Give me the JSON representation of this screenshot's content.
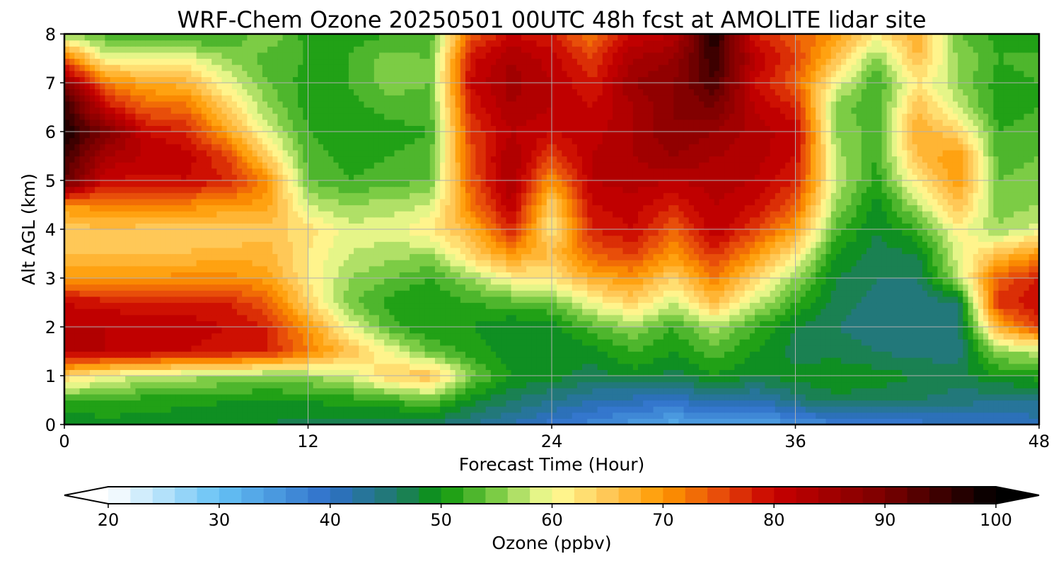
{
  "chart_data": {
    "type": "heatmap",
    "title": "WRF-Chem Ozone  20250501 00UTC 48h fcst at AMOLITE lidar site",
    "xlabel": "Forecast Time (Hour)",
    "ylabel": "Alt AGL (km)",
    "xlim": [
      0,
      48
    ],
    "ylim": [
      0,
      8
    ],
    "xticks": [
      0,
      12,
      24,
      36,
      48
    ],
    "yticks": [
      0,
      1,
      2,
      3,
      4,
      5,
      6,
      7,
      8
    ],
    "x_tick_labels": [
      "0",
      "12",
      "24",
      "36",
      "48"
    ],
    "y_tick_labels": [
      "0",
      "1",
      "2",
      "3",
      "4",
      "5",
      "6",
      "7",
      "8"
    ],
    "grid": true,
    "colorbar": {
      "label": "Ozone  (ppbv)",
      "min": 20,
      "max": 100,
      "step": 2,
      "extend": "both",
      "ticks": [
        20,
        30,
        40,
        50,
        60,
        70,
        80,
        90,
        100
      ],
      "tick_labels": [
        "20",
        "30",
        "40",
        "50",
        "60",
        "70",
        "80",
        "90",
        "100"
      ],
      "colormap": [
        [
          20,
          "#ffffff"
        ],
        [
          30,
          "#66c2f5"
        ],
        [
          40,
          "#2e6fc9"
        ],
        [
          46,
          "#1f7a6a"
        ],
        [
          50,
          "#0a960a"
        ],
        [
          55,
          "#7ccc45"
        ],
        [
          60,
          "#ffff99"
        ],
        [
          65,
          "#ffc857"
        ],
        [
          70,
          "#ff9900"
        ],
        [
          75,
          "#e84e0a"
        ],
        [
          80,
          "#c80000"
        ],
        [
          90,
          "#7a0000"
        ],
        [
          100,
          "#000000"
        ]
      ]
    },
    "x_hours": [
      0,
      2,
      4,
      6,
      8,
      10,
      12,
      14,
      16,
      18,
      20,
      22,
      24,
      26,
      28,
      30,
      32,
      34,
      36,
      38,
      40,
      42,
      44,
      46,
      48
    ],
    "z_km": [
      0,
      0.5,
      1,
      1.5,
      2,
      2.5,
      3,
      3.5,
      4,
      4.5,
      5,
      5.5,
      6,
      6.5,
      7,
      7.5,
      8
    ],
    "ozone_ppbv": [
      [
        48,
        49,
        49,
        48,
        48,
        48,
        47,
        47,
        46,
        46,
        44,
        42,
        39,
        37,
        35,
        33,
        34,
        33,
        36,
        37,
        38,
        39,
        40,
        40,
        41
      ],
      [
        52,
        52,
        51,
        51,
        50,
        50,
        50,
        51,
        52,
        54,
        49,
        46,
        44,
        42,
        41,
        40,
        43,
        41,
        45,
        47,
        47,
        46,
        45,
        44,
        44
      ],
      [
        64,
        60,
        58,
        57,
        56,
        55,
        56,
        58,
        64,
        66,
        55,
        50,
        49,
        47,
        49,
        47,
        50,
        48,
        49,
        50,
        49,
        48,
        47,
        50,
        51
      ],
      [
        82,
        82,
        81,
        80,
        79,
        78,
        72,
        66,
        60,
        54,
        51,
        49,
        48,
        49,
        52,
        50,
        53,
        50,
        47,
        47,
        46,
        45,
        45,
        56,
        57
      ],
      [
        82,
        82,
        81,
        81,
        80,
        78,
        70,
        60,
        53,
        50,
        50,
        48,
        49,
        53,
        56,
        52,
        57,
        52,
        48,
        46,
        45,
        44,
        45,
        68,
        76
      ],
      [
        80,
        79,
        79,
        79,
        78,
        74,
        64,
        55,
        51,
        50,
        52,
        53,
        54,
        60,
        64,
        58,
        66,
        58,
        52,
        47,
        45,
        44,
        46,
        77,
        80
      ],
      [
        70,
        70,
        70,
        71,
        71,
        69,
        62,
        56,
        54,
        52,
        56,
        61,
        62,
        68,
        70,
        64,
        72,
        64,
        56,
        48,
        46,
        46,
        57,
        74,
        78
      ],
      [
        66,
        66,
        66,
        66,
        67,
        67,
        62,
        58,
        57,
        56,
        64,
        70,
        66,
        74,
        76,
        70,
        77,
        70,
        62,
        50,
        47,
        48,
        59,
        66,
        70
      ],
      [
        64,
        66,
        65,
        65,
        64,
        65,
        63,
        59,
        59,
        62,
        67,
        78,
        62,
        78,
        80,
        74,
        82,
        76,
        69,
        53,
        48,
        52,
        61,
        56,
        59
      ],
      [
        70,
        71,
        71,
        71,
        70,
        69,
        58,
        56,
        57,
        58,
        72,
        82,
        64,
        80,
        81,
        78,
        82,
        80,
        74,
        56,
        49,
        57,
        66,
        55,
        56
      ],
      [
        92,
        80,
        79,
        80,
        78,
        71,
        54,
        52,
        53,
        54,
        74,
        84,
        70,
        82,
        83,
        82,
        83,
        82,
        78,
        58,
        51,
        62,
        70,
        54,
        55
      ],
      [
        95,
        84,
        82,
        81,
        76,
        64,
        53,
        51,
        52,
        53,
        75,
        84,
        76,
        82,
        84,
        86,
        84,
        83,
        80,
        57,
        52,
        66,
        70,
        53,
        54
      ],
      [
        98,
        90,
        80,
        78,
        69,
        59,
        52,
        50,
        51,
        52,
        76,
        82,
        80,
        81,
        84,
        88,
        86,
        83,
        81,
        56,
        53,
        68,
        64,
        52,
        53
      ],
      [
        96,
        80,
        74,
        73,
        64,
        56,
        51,
        51,
        53,
        53,
        78,
        84,
        82,
        80,
        84,
        88,
        90,
        82,
        78,
        55,
        52,
        66,
        58,
        51,
        52
      ],
      [
        88,
        72,
        68,
        67,
        60,
        54,
        51,
        52,
        55,
        54,
        80,
        85,
        82,
        78,
        86,
        88,
        94,
        80,
        74,
        60,
        52,
        62,
        56,
        51,
        52
      ],
      [
        74,
        60,
        60,
        60,
        56,
        53,
        52,
        52,
        55,
        54,
        79,
        84,
        81,
        76,
        84,
        86,
        96,
        82,
        76,
        66,
        55,
        66,
        56,
        52,
        53
      ],
      [
        56,
        53,
        51,
        51,
        52,
        56,
        51,
        51,
        52,
        52,
        74,
        80,
        78,
        72,
        80,
        82,
        98,
        78,
        74,
        70,
        62,
        68,
        54,
        51,
        50
      ]
    ]
  }
}
